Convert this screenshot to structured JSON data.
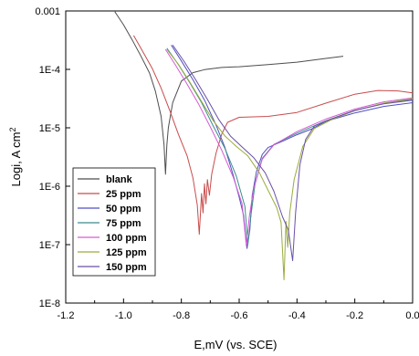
{
  "chart_data": {
    "type": "line",
    "xlabel": "E,mV (vs. SCE)",
    "ylabel_main": "Logi, A cm",
    "ylabel_sup": "2",
    "xlim": [
      -1.2,
      0.0
    ],
    "ylim": [
      1e-08,
      0.001
    ],
    "y_scale": "log",
    "x_ticks": [
      -1.2,
      -1.0,
      -0.8,
      -0.6,
      -0.4,
      -0.2,
      0.0
    ],
    "x_tick_labels": [
      "-1.2",
      "-1.0",
      "-0.8",
      "-0.6",
      "-0.4",
      "-0.2",
      "0.0"
    ],
    "y_ticks": [
      1e-08,
      1e-07,
      1e-06,
      1e-05,
      0.0001,
      0.001
    ],
    "y_tick_labels": [
      "1E-8",
      "1E-7",
      "1E-6",
      "1E-5",
      "1E-4",
      "0.001"
    ],
    "legend_position": "left-middle",
    "series": [
      {
        "name": "blank",
        "color": "#4d4d4d",
        "points": [
          [
            -1.03,
            0.00097
          ],
          [
            -1.0,
            0.00058
          ],
          [
            -0.97,
            0.00032
          ],
          [
            -0.94,
            0.00017
          ],
          [
            -0.91,
            8.65e-05
          ],
          [
            -0.89,
            4.25e-05
          ],
          [
            -0.87,
            1.57e-05
          ],
          [
            -0.86,
            5.1e-06
          ],
          [
            -0.855,
            1.6e-06
          ],
          [
            -0.85,
            5.1e-06
          ],
          [
            -0.845,
            1e-05
          ],
          [
            -0.83,
            2.7e-05
          ],
          [
            -0.8,
            6.3e-05
          ],
          [
            -0.76,
            8.8e-05
          ],
          [
            -0.72,
            9.9e-05
          ],
          [
            -0.66,
            0.000108
          ],
          [
            -0.6,
            0.000111
          ],
          [
            -0.5,
            0.000121
          ],
          [
            -0.4,
            0.000133
          ],
          [
            -0.3,
            0.000154
          ],
          [
            -0.24,
            0.000168
          ]
        ]
      },
      {
        "name": "25 ppm",
        "color": "#c84c4c",
        "points": [
          [
            -0.965,
            0.00038
          ],
          [
            -0.94,
            0.00023
          ],
          [
            -0.9,
            0.000102
          ],
          [
            -0.87,
            4.76e-05
          ],
          [
            -0.84,
            1.97e-05
          ],
          [
            -0.81,
            7.7e-06
          ],
          [
            -0.78,
            3.3e-06
          ],
          [
            -0.76,
            1.4e-06
          ],
          [
            -0.745,
            4.8e-07
          ],
          [
            -0.738,
            1.5e-07
          ],
          [
            -0.73,
            7.5e-07
          ],
          [
            -0.725,
            3.5e-07
          ],
          [
            -0.72,
            1.1e-06
          ],
          [
            -0.715,
            5e-07
          ],
          [
            -0.71,
            1.3e-06
          ],
          [
            -0.703,
            7e-07
          ],
          [
            -0.695,
            1.6e-06
          ],
          [
            -0.68,
            3.7e-06
          ],
          [
            -0.66,
            7.9e-06
          ],
          [
            -0.64,
            1.24e-05
          ],
          [
            -0.6,
            1.51e-05
          ],
          [
            -0.5,
            1.57e-05
          ],
          [
            -0.4,
            1.83e-05
          ],
          [
            -0.3,
            2.64e-05
          ],
          [
            -0.2,
            3.76e-05
          ],
          [
            -0.12,
            4.35e-05
          ],
          [
            -0.05,
            4.28e-05
          ],
          [
            0.0,
            3.96e-05
          ]
        ]
      },
      {
        "name": "50 ppm",
        "color": "#4f4fc0",
        "points": [
          [
            -0.835,
            0.00026
          ],
          [
            -0.8,
            0.000139
          ],
          [
            -0.76,
            6.67e-05
          ],
          [
            -0.72,
            2.99e-05
          ],
          [
            -0.68,
            1.11e-05
          ],
          [
            -0.65,
            4.7e-06
          ],
          [
            -0.62,
            1.5e-06
          ],
          [
            -0.6,
            6.5e-07
          ],
          [
            -0.585,
            3.2e-07
          ],
          [
            -0.573,
            8.6e-08
          ],
          [
            -0.563,
            1.8e-07
          ],
          [
            -0.555,
            7e-07
          ],
          [
            -0.54,
            1.8e-06
          ],
          [
            -0.52,
            3.5e-06
          ],
          [
            -0.5,
            4.6e-06
          ],
          [
            -0.45,
            5.9e-06
          ],
          [
            -0.4,
            7.6e-06
          ],
          [
            -0.35,
            9.5e-06
          ],
          [
            -0.3,
            1.29e-05
          ],
          [
            -0.2,
            1.8e-05
          ],
          [
            -0.1,
            2.32e-05
          ],
          [
            0.0,
            2.69e-05
          ]
        ]
      },
      {
        "name": "75 ppm",
        "color": "#3d8c8c",
        "points": [
          [
            -0.85,
            0.00023
          ],
          [
            -0.81,
            0.00012
          ],
          [
            -0.77,
            5.8e-05
          ],
          [
            -0.73,
            2.7e-05
          ],
          [
            -0.69,
            1.08e-05
          ],
          [
            -0.65,
            4.5e-06
          ],
          [
            -0.61,
            1.5e-06
          ],
          [
            -0.58,
            4.5e-07
          ],
          [
            -0.57,
            1e-07
          ],
          [
            -0.56,
            3e-07
          ],
          [
            -0.545,
            1.1e-06
          ],
          [
            -0.52,
            3e-06
          ],
          [
            -0.48,
            5.2e-06
          ],
          [
            -0.4,
            8.1e-06
          ],
          [
            -0.3,
            1.32e-05
          ],
          [
            -0.2,
            1.98e-05
          ],
          [
            -0.1,
            2.6e-05
          ],
          [
            0.0,
            3.05e-05
          ]
        ]
      },
      {
        "name": "100 ppm",
        "color": "#d45ad4",
        "points": [
          [
            -0.855,
            0.00022
          ],
          [
            -0.82,
            0.000118
          ],
          [
            -0.78,
            5.58e-05
          ],
          [
            -0.74,
            2.52e-05
          ],
          [
            -0.7,
            1.04e-05
          ],
          [
            -0.66,
            4.1e-06
          ],
          [
            -0.62,
            1.4e-06
          ],
          [
            -0.59,
            5e-07
          ],
          [
            -0.575,
            9.5e-08
          ],
          [
            -0.565,
            3e-07
          ],
          [
            -0.55,
            9e-07
          ],
          [
            -0.52,
            2.9e-06
          ],
          [
            -0.48,
            5.1e-06
          ],
          [
            -0.4,
            8.6e-06
          ],
          [
            -0.3,
            1.41e-05
          ],
          [
            -0.2,
            2.09e-05
          ],
          [
            -0.1,
            2.78e-05
          ],
          [
            0.0,
            3.25e-05
          ]
        ]
      },
      {
        "name": "125 ppm",
        "color": "#9aac3c",
        "points": [
          [
            -0.85,
            0.00022
          ],
          [
            -0.81,
            0.000122
          ],
          [
            -0.77,
            5.95e-05
          ],
          [
            -0.73,
            2.83e-05
          ],
          [
            -0.69,
            1.33e-05
          ],
          [
            -0.65,
            7.3e-06
          ],
          [
            -0.61,
            4.8e-06
          ],
          [
            -0.57,
            3.3e-06
          ],
          [
            -0.53,
            1.7e-06
          ],
          [
            -0.5,
            8.5e-07
          ],
          [
            -0.47,
            4.3e-07
          ],
          [
            -0.455,
            2.4e-07
          ],
          [
            -0.445,
            2.5e-08
          ],
          [
            -0.438,
            2.5e-07
          ],
          [
            -0.432,
            9e-08
          ],
          [
            -0.425,
            3.5e-07
          ],
          [
            -0.41,
            1.3e-06
          ],
          [
            -0.38,
            4.8e-06
          ],
          [
            -0.34,
            9.7e-06
          ],
          [
            -0.28,
            1.38e-05
          ],
          [
            -0.2,
            1.96e-05
          ],
          [
            -0.1,
            2.64e-05
          ],
          [
            0.0,
            3.15e-05
          ]
        ]
      },
      {
        "name": "150 ppm",
        "color": "#6a4fa8",
        "points": [
          [
            -0.83,
            0.00026
          ],
          [
            -0.79,
            0.000136
          ],
          [
            -0.75,
            6.58e-05
          ],
          [
            -0.71,
            3.06e-05
          ],
          [
            -0.67,
            1.37e-05
          ],
          [
            -0.63,
            7.2e-06
          ],
          [
            -0.59,
            4.7e-06
          ],
          [
            -0.55,
            3.1e-06
          ],
          [
            -0.51,
            1.7e-06
          ],
          [
            -0.48,
            8.2e-07
          ],
          [
            -0.45,
            3e-07
          ],
          [
            -0.43,
            1.8e-07
          ],
          [
            -0.415,
            5.3e-08
          ],
          [
            -0.405,
            3.5e-07
          ],
          [
            -0.39,
            2.3e-06
          ],
          [
            -0.37,
            6.3e-06
          ],
          [
            -0.34,
            1.07e-05
          ],
          [
            -0.28,
            1.43e-05
          ],
          [
            -0.2,
            1.98e-05
          ],
          [
            -0.1,
            2.57e-05
          ],
          [
            0.0,
            2.97e-05
          ]
        ]
      }
    ]
  }
}
